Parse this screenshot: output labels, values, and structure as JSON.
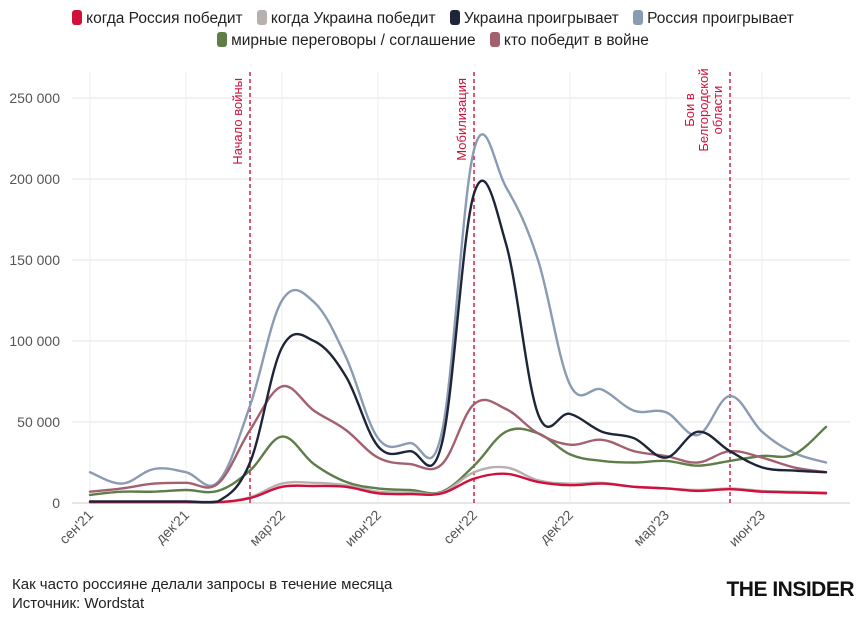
{
  "chart_data": {
    "type": "line",
    "x": [
      "2021-09",
      "2021-10",
      "2021-11",
      "2021-12",
      "2022-01",
      "2022-02",
      "2022-03",
      "2022-04",
      "2022-05",
      "2022-06",
      "2022-07",
      "2022-08",
      "2022-09",
      "2022-10",
      "2022-11",
      "2022-12",
      "2023-01",
      "2023-02",
      "2023-03",
      "2023-04",
      "2023-05",
      "2023-06",
      "2023-07",
      "2023-08"
    ],
    "x_ticks": [
      {
        "x": "2021-09",
        "label": "сен'21"
      },
      {
        "x": "2021-12",
        "label": "дек'21"
      },
      {
        "x": "2022-03",
        "label": "мар'22"
      },
      {
        "x": "2022-06",
        "label": "июн'22"
      },
      {
        "x": "2022-09",
        "label": "сен'22"
      },
      {
        "x": "2022-12",
        "label": "дек'22"
      },
      {
        "x": "2023-03",
        "label": "мар'23"
      },
      {
        "x": "2023-06",
        "label": "июн'23"
      }
    ],
    "y_ticks": [
      {
        "value": 0,
        "label": "0"
      },
      {
        "value": 50000,
        "label": "50 000"
      },
      {
        "value": 100000,
        "label": "100 000"
      },
      {
        "value": 150000,
        "label": "150 000"
      },
      {
        "value": 200000,
        "label": "200 000"
      },
      {
        "value": 250000,
        "label": "250 000"
      }
    ],
    "ylim": [
      0,
      265000
    ],
    "grid": true,
    "legend_position": "top",
    "series": [
      {
        "name": "когда Россия победит",
        "color": "#d0103a",
        "values": [
          500,
          500,
          500,
          500,
          500,
          3000,
          10000,
          10500,
          10000,
          6000,
          5500,
          6000,
          15000,
          18000,
          13000,
          11000,
          12000,
          10000,
          9000,
          7500,
          8500,
          7000,
          6500,
          6000
        ]
      },
      {
        "name": "когда Украина победит",
        "color": "#b8afaf",
        "values": [
          500,
          500,
          500,
          500,
          500,
          3500,
          12000,
          12500,
          11000,
          7000,
          6500,
          6500,
          19000,
          22000,
          14000,
          12000,
          12500,
          10000,
          9000,
          8000,
          9000,
          7500,
          7000,
          6500
        ]
      },
      {
        "name": "Украина проигрывает",
        "color": "#1e2538",
        "values": [
          1000,
          1000,
          1000,
          1000,
          1000,
          25000,
          96000,
          100000,
          78000,
          35000,
          32000,
          37000,
          191000,
          160000,
          55000,
          55000,
          44000,
          40000,
          28000,
          44000,
          32000,
          22000,
          20000,
          19000
        ]
      },
      {
        "name": "Россия проигрывает",
        "color": "#8a9bb3",
        "values": [
          19000,
          12000,
          21000,
          19000,
          13000,
          60000,
          125000,
          124000,
          90000,
          40000,
          37000,
          44000,
          218000,
          195000,
          150000,
          73000,
          70000,
          57000,
          56000,
          42000,
          66000,
          44000,
          31000,
          25000
        ]
      },
      {
        "name": "мирные переговоры / соглашение",
        "color": "#5e7d48",
        "values": [
          5000,
          7000,
          7000,
          8000,
          7500,
          20000,
          41000,
          24000,
          13000,
          9000,
          8000,
          7000,
          23000,
          44000,
          43000,
          30000,
          26000,
          25000,
          26000,
          23000,
          26000,
          29000,
          30000,
          47000
        ]
      },
      {
        "name": "кто победит в войне",
        "color": "#a3606f",
        "values": [
          7000,
          9000,
          12000,
          12500,
          12000,
          45000,
          72000,
          57000,
          45000,
          28000,
          24000,
          24000,
          61000,
          58000,
          43000,
          36000,
          39000,
          32000,
          29000,
          25000,
          32000,
          28000,
          22000,
          19000
        ]
      }
    ],
    "annotations": [
      {
        "x": "2022-02",
        "text": "Начало войны",
        "color": "#d0103a",
        "style": "dashed"
      },
      {
        "x": "2022-09",
        "text": "Мобилизация",
        "color": "#d0103a",
        "style": "dashed"
      },
      {
        "x": "2023-05",
        "text": "Бои в Белгородской области",
        "lines": [
          "Бои в",
          "Белгородской",
          "области"
        ],
        "color": "#d0103a",
        "style": "dashed"
      }
    ]
  },
  "footer": {
    "line1": "Как часто россияне делали запросы в течение месяца",
    "line2": "Источник: Wordstat"
  },
  "logo": "THE INSIDER"
}
